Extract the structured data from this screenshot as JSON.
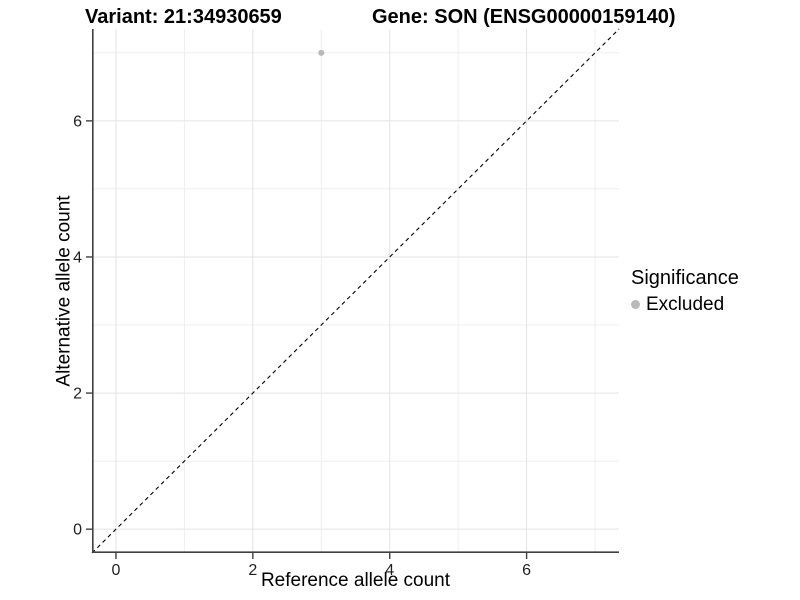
{
  "chart_data": {
    "type": "scatter",
    "titles": {
      "left": "Variant: 21:34930659",
      "right": "Gene: SON (ENSG00000159140)"
    },
    "xlabel": "Reference allele count",
    "ylabel": "Alternative allele count",
    "xlim": [
      -0.35,
      7.35
    ],
    "ylim": [
      -0.35,
      7.35
    ],
    "x_ticks": [
      0,
      2,
      4,
      6
    ],
    "y_ticks": [
      0,
      2,
      4,
      6
    ],
    "minor_gridlines": [
      1,
      3,
      5,
      7
    ],
    "points": [
      {
        "x": 3,
        "y": 7,
        "significance": "Excluded"
      }
    ],
    "identity_line": {
      "style": "dashed",
      "slope": 1,
      "intercept": 0
    },
    "legend": {
      "title": "Significance",
      "position": "right",
      "items": [
        {
          "label": "Excluded",
          "color": "#b9b9b9"
        }
      ]
    },
    "colors": {
      "background": "#ffffff",
      "point": "#b9b9b9",
      "grid_major": "#e3e3e3",
      "grid_minor": "#efefef",
      "axis_line": "#404040",
      "tick_label": "#1f1f1f",
      "identity_line": "#000000"
    }
  }
}
